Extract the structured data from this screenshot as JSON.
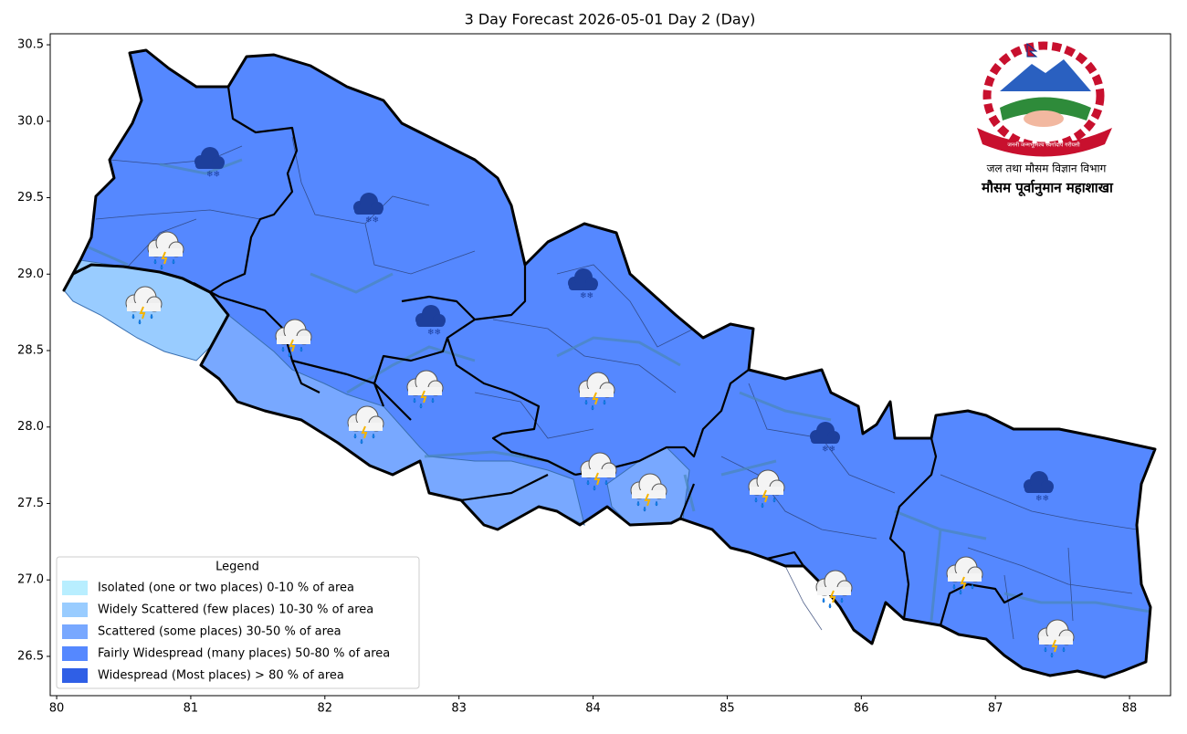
{
  "title": "3 Day Forecast 2026-05-01 Day 2 (Day)",
  "map": {
    "xlim": [
      79.952,
      88.306
    ],
    "ylim": [
      26.243,
      30.572
    ],
    "xticks": [
      80,
      81,
      82,
      83,
      84,
      85,
      86,
      87,
      88
    ],
    "yticks": [
      26.5,
      {
        "value": 27,
        "label": "27.0"
      },
      27.5,
      {
        "value": 28,
        "label": "28.0"
      },
      28.5,
      {
        "value": 29,
        "label": "29.0"
      },
      29.5,
      {
        "value": 30,
        "label": "30.0"
      },
      30.5
    ]
  },
  "legend": {
    "title": "Legend",
    "items": [
      {
        "label": "Isolated (one or two places)  0-10 % of area",
        "color": "#b8eeff"
      },
      {
        "label": "Widely Scattered (few places)  10-30 % of area",
        "color": "#99ccff"
      },
      {
        "label": "Scattered (some places)  30-50 % of area",
        "color": "#78a8ff"
      },
      {
        "label": "Fairly Widespread (many places)  50-80 % of area",
        "color": "#5588ff"
      },
      {
        "label": "Widespread (Most places) > 80 % of area",
        "color": "#2f5fe6"
      }
    ]
  },
  "emblem": {
    "motto": "जननी जन्मभूमिश्च स्वर्गादपि गरीयसी",
    "department": "जल तथा मौसम विज्ञान विभाग",
    "division": "मौसम पूर्वानुमान महाशाखा"
  }
}
